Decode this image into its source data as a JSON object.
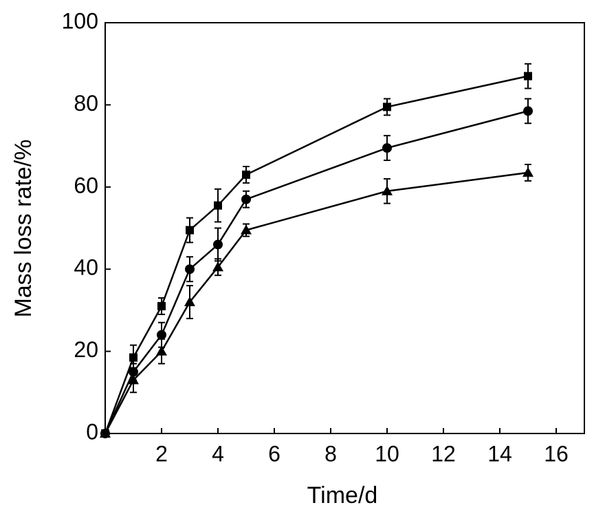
{
  "chart_data": {
    "type": "line",
    "x_label": "Time/d",
    "y_label": "Mass loss rate/%",
    "x": [
      0,
      1,
      2,
      3,
      4,
      5,
      10,
      15
    ],
    "series": [
      {
        "marker": "square",
        "color": "#000000",
        "values": [
          0,
          18.5,
          31,
          49.5,
          55.5,
          63,
          79.5,
          87
        ],
        "errors": [
          0,
          3,
          2,
          3,
          4,
          2,
          2,
          3
        ]
      },
      {
        "marker": "circle",
        "color": "#000000",
        "values": [
          0,
          15,
          24,
          40,
          46,
          57,
          69.5,
          78.5
        ],
        "errors": [
          0,
          2,
          3,
          3,
          4,
          2,
          3,
          3
        ]
      },
      {
        "marker": "triangle",
        "color": "#000000",
        "values": [
          0,
          13,
          20,
          32,
          40.5,
          49.5,
          59,
          63.5
        ],
        "errors": [
          0,
          3,
          3,
          4,
          2,
          1.5,
          3,
          2
        ]
      }
    ],
    "xlim": [
      0,
      17
    ],
    "xticks": [
      2,
      4,
      6,
      8,
      10,
      12,
      14,
      16
    ],
    "ylim": [
      0,
      100
    ],
    "yticks": [
      0,
      20,
      40,
      60,
      80,
      100
    ],
    "grid": false
  }
}
